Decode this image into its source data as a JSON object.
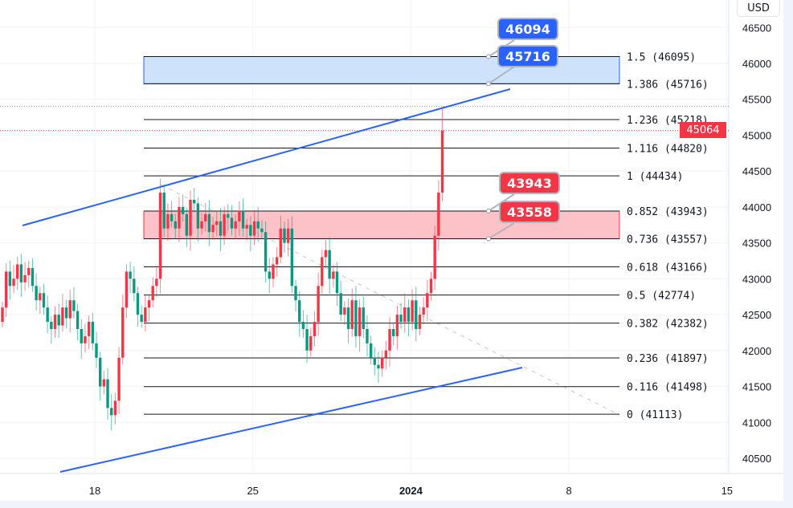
{
  "currency_button": "USD",
  "chart_data": {
    "type": "candlestick",
    "interval_note": "",
    "y_axis": {
      "ticks": [
        46500,
        46000,
        45500,
        45000,
        44500,
        44000,
        43500,
        43000,
        42500,
        42000,
        41500,
        41000,
        40500
      ],
      "ylim": [
        40300,
        46600
      ]
    },
    "x_axis": {
      "ticks": [
        {
          "label": "18",
          "day": 18
        },
        {
          "label": "25",
          "day": 25
        },
        {
          "label": "2024",
          "day": 32
        },
        {
          "label": "8",
          "day": 39
        },
        {
          "label": "15",
          "day": 46
        }
      ]
    },
    "last_price": 45064,
    "last_high": 45400,
    "colors": {
      "up": "#f23645",
      "down": "#089981",
      "channel": "#2962ff",
      "fib": "#131722",
      "zone_blue": "#cfe2fb",
      "zone_red": "#fbc3c7"
    },
    "closes": [
      42600,
      43100,
      42900,
      43000,
      43200,
      42950,
      43050,
      43150,
      42900,
      42700,
      42800,
      42600,
      42400,
      42300,
      42500,
      42350,
      42600,
      42450,
      42700,
      42550,
      42300,
      42100,
      42200,
      42400,
      42100,
      41900,
      41500,
      41600,
      41200,
      41100,
      41300,
      41900,
      42600,
      43100,
      43000,
      42800,
      42500,
      42400,
      42600,
      42700,
      42900,
      43000,
      44200,
      43700,
      43900,
      43800,
      43700,
      44000,
      43900,
      43600,
      44100,
      44050,
      43700,
      43800,
      43900,
      43650,
      43750,
      43800,
      43600,
      43900,
      43850,
      43700,
      43800,
      43950,
      43700,
      43750,
      43600,
      43800,
      43700,
      43650,
      43100,
      43000,
      43200,
      43300,
      43700,
      43500,
      43700,
      42900,
      42700,
      42400,
      42300,
      42000,
      42200,
      42400,
      42900,
      43300,
      43400,
      43000,
      43100,
      42800,
      42500,
      42600,
      42300,
      42700,
      42200,
      42600,
      42300,
      42100,
      41900,
      41800,
      41750,
      41900,
      42000,
      42300,
      42200,
      42500,
      42400,
      42600,
      42400,
      42700,
      42300,
      42500,
      42600,
      42800,
      43000,
      43600,
      44200,
      45064
    ],
    "fib_levels": [
      {
        "ratio": "1.5",
        "price": 46095
      },
      {
        "ratio": "1.386",
        "price": 45716
      },
      {
        "ratio": "1.236",
        "price": 45218
      },
      {
        "ratio": "1.116",
        "price": 44820
      },
      {
        "ratio": "1",
        "price": 44434
      },
      {
        "ratio": "0.852",
        "price": 43943
      },
      {
        "ratio": "0.736",
        "price": 43557
      },
      {
        "ratio": "0.618",
        "price": 43166
      },
      {
        "ratio": "0.5",
        "price": 42774
      },
      {
        "ratio": "0.382",
        "price": 42382
      },
      {
        "ratio": "0.236",
        "price": 41897
      },
      {
        "ratio": "0.116",
        "price": 41498
      },
      {
        "ratio": "0",
        "price": 41113
      }
    ],
    "zones": [
      {
        "color": "blue",
        "top": 46095,
        "bottom": 45716,
        "labels": [
          "46094",
          "45716"
        ]
      },
      {
        "color": "red",
        "top": 43943,
        "bottom": 43557,
        "labels": [
          "43943",
          "43558"
        ]
      }
    ]
  }
}
